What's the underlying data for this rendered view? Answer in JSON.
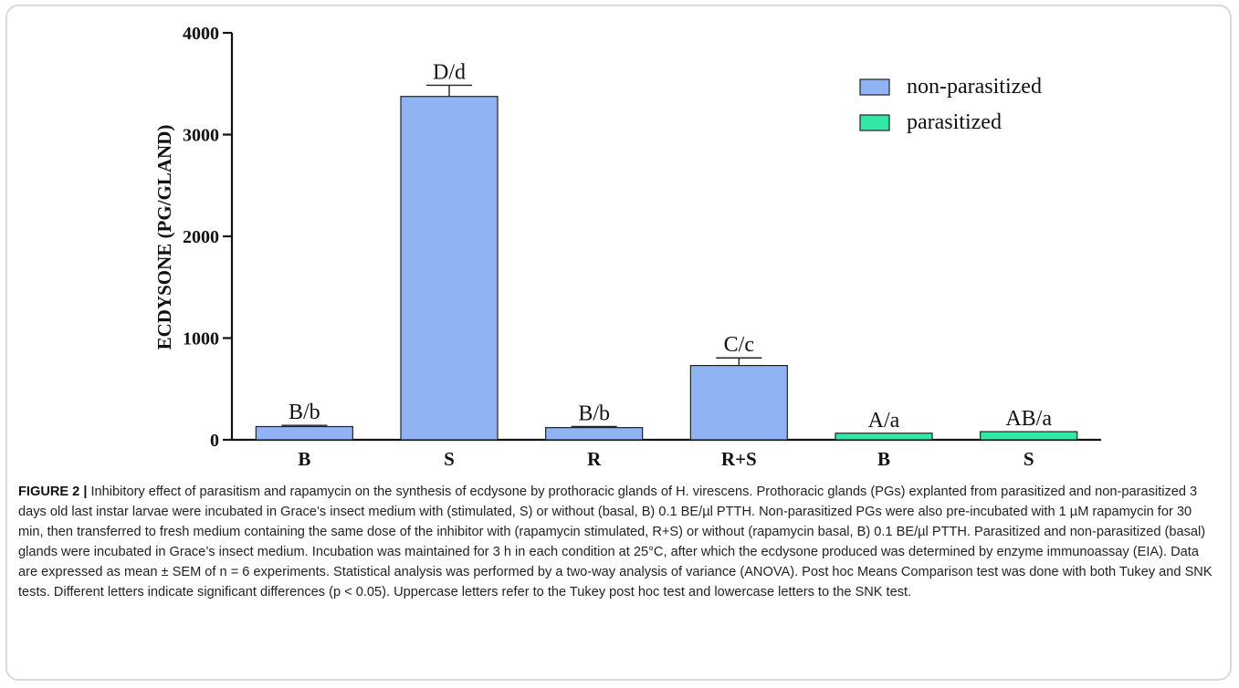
{
  "chart_data": {
    "type": "bar",
    "ylabel": "ECDYSONE (PG/GLAND)",
    "xlabel": "",
    "ylim": [
      0,
      4000
    ],
    "yticks": [
      0,
      1000,
      2000,
      3000,
      4000
    ],
    "categories": [
      "B",
      "S",
      "R",
      "R+S",
      "B",
      "S"
    ],
    "values": [
      130,
      3375,
      120,
      730,
      65,
      80
    ],
    "errors": [
      12,
      110,
      10,
      75,
      0,
      0
    ],
    "significance_labels": [
      "B/b",
      "D/d",
      "B/b",
      "C/c",
      "A/a",
      "AB/a"
    ],
    "groups": [
      "non-parasitized",
      "non-parasitized",
      "non-parasitized",
      "non-parasitized",
      "parasitized",
      "parasitized"
    ],
    "legend": {
      "placement": "top-right",
      "entries": [
        {
          "name": "non-parasitized",
          "color": "#90b4f3"
        },
        {
          "name": "parasitized",
          "color": "#33e8a6"
        }
      ]
    },
    "grid": false
  },
  "caption": {
    "label": "FIGURE 2 |",
    "text": " Inhibitory effect of parasitism and rapamycin on the synthesis of ecdysone by prothoracic glands of H. virescens. Prothoracic glands (PGs) explanted from parasitized and non-parasitized 3 days old last instar larvae were incubated in Grace’s insect medium with (stimulated, S) or without (basal, B) 0.1 BE/µl PTTH. Non-parasitized PGs were also pre-incubated with 1 µM rapamycin for 30 min, then transferred to fresh medium containing the same dose of the inhibitor with (rapamycin stimulated, R+S) or without (rapamycin basal, B) 0.1 BE/µl PTTH. Parasitized and non-parasitized (basal) glands were incubated in Grace’s insect medium. Incubation was maintained for 3 h in each condition at 25°C, after which the ecdysone produced was determined by enzyme immunoassay (EIA). Data are expressed as mean ± SEM of n = 6 experiments. Statistical analysis was performed by a two-way analysis of variance (ANOVA). Post hoc Means Comparison test was done with both Tukey and SNK tests. Different letters indicate significant differences (p < 0.05). Uppercase letters refer to the Tukey post hoc test and lowercase letters to the SNK test."
  }
}
